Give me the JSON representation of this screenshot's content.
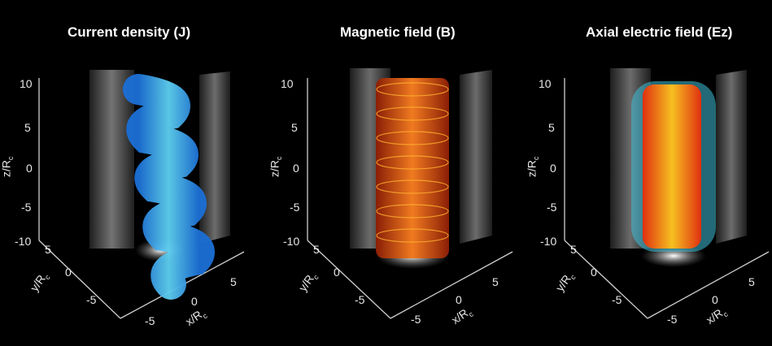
{
  "panels": [
    {
      "title": "Current density (J)"
    },
    {
      "title": "Magnetic field (B)"
    },
    {
      "title": "Axial electric field (Ez)"
    }
  ],
  "axes": {
    "z_ticks": [
      "10",
      "5",
      "0",
      "-5",
      "-10"
    ],
    "y_ticks": [
      "5",
      "0",
      "-5"
    ],
    "x_ticks": [
      "-5",
      "0",
      "5"
    ],
    "z_label": "z/R",
    "y_label": "y/R",
    "x_label": "x/R",
    "label_subscript": "c"
  },
  "colors": {
    "background": "#000000",
    "current_tube": "#3fa3e8",
    "magnetic_tube": "#d8461a",
    "efield_core": "#f0a020",
    "efield_halo": "#40c0d8"
  }
}
